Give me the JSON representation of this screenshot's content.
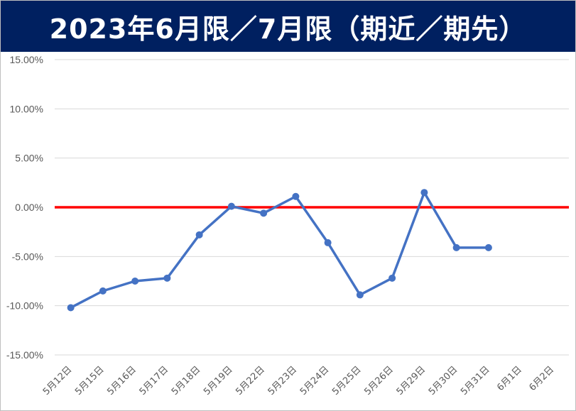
{
  "chart_data": {
    "type": "line",
    "title": "2023年6月限／7月限（期近／期先）",
    "categories": [
      "5月12日",
      "5月15日",
      "5月16日",
      "5月17日",
      "5月18日",
      "5月19日",
      "5月22日",
      "5月23日",
      "5月24日",
      "5月25日",
      "5月26日",
      "5月29日",
      "5月30日",
      "5月31日",
      "6月1日",
      "6月2日"
    ],
    "series": [
      {
        "values": [
          -10.2,
          -8.5,
          -7.5,
          -7.2,
          -2.8,
          0.1,
          -0.6,
          1.1,
          -3.6,
          -8.9,
          -7.2,
          1.5,
          -4.1,
          -4.1,
          null,
          null
        ],
        "color": "#4472C4"
      }
    ],
    "reference_line": {
      "value": 0,
      "color": "#FF0000"
    },
    "ylim": [
      -15,
      15
    ],
    "y_ticks": [
      "15.00%",
      "10.00%",
      "5.00%",
      "0.00%",
      "-5.00%",
      "-10.00%",
      "-15.00%"
    ],
    "y_tick_values": [
      15,
      10,
      5,
      0,
      -5,
      -10,
      -15
    ],
    "grid": true,
    "legend": "none",
    "xlabel": "",
    "ylabel": ""
  },
  "colors": {
    "title_background": "#002060",
    "title_text": "#FFFFFF",
    "grid": "#D9D9D9",
    "tick_text": "#595959"
  }
}
